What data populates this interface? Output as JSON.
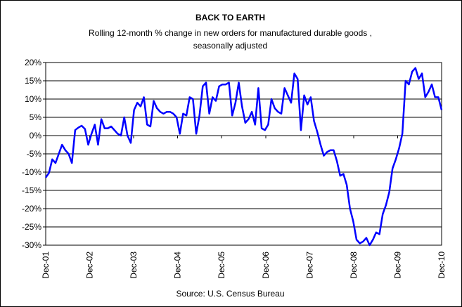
{
  "chart_data": {
    "type": "line",
    "title": "BACK TO EARTH",
    "subtitle_lines": [
      "Rolling 12-month % change in new orders for manufactured durable goods ,",
      "seasonally adjusted"
    ],
    "source": "Source: U.S. Census Bureau",
    "xlabel": "",
    "ylabel": "",
    "ylim": [
      -30,
      20
    ],
    "y_ticks": [
      20,
      15,
      10,
      5,
      0,
      -5,
      -10,
      -15,
      -20,
      -25,
      -30
    ],
    "y_tick_labels": [
      "20%",
      "15%",
      "10%",
      "5%",
      "0%",
      "-5%",
      "-10%",
      "-15%",
      "-20%",
      "-25%",
      "-30%"
    ],
    "x_tick_labels": [
      "Dec-01",
      "Dec-02",
      "Dec-03",
      "Dec-04",
      "Dec-05",
      "Dec-06",
      "Dec-07",
      "Dec-08",
      "Dec-09",
      "Dec-10"
    ],
    "grid": true,
    "line_color": "#0000ff",
    "series": [
      {
        "values": [
          -11.5,
          -10.2,
          -6.5,
          -7.5,
          -5.0,
          -2.5,
          -4.0,
          -5.0,
          -7.5,
          1.5,
          2.2,
          2.7,
          1.8,
          -2.5,
          0.5,
          3.0,
          -2.5,
          4.5,
          2.0,
          2.0,
          2.5,
          1.5,
          0.5,
          0.0,
          5.0,
          0.0,
          -2.0,
          7.0,
          9.0,
          8.0,
          10.5,
          3.0,
          2.5,
          9.5,
          7.5,
          6.5,
          6.0,
          6.5,
          6.5,
          6.0,
          5.0,
          0.5,
          6.0,
          5.5,
          10.5,
          10.0,
          0.5,
          5.5,
          13.5,
          14.5,
          6.0,
          10.5,
          9.5,
          13.5,
          14.0,
          14.0,
          14.5,
          5.5,
          9.0,
          14.5,
          8.0,
          3.5,
          4.5,
          6.5,
          3.0,
          13.0,
          2.0,
          1.5,
          3.0,
          10.0,
          7.5,
          6.5,
          6.0,
          13.0,
          11.0,
          9.0,
          17.0,
          15.5,
          1.5,
          11.0,
          8.5,
          10.5,
          4.0,
          1.0,
          -2.5,
          -5.5,
          -4.5,
          -4.0,
          -4.0,
          -7.0,
          -11.0,
          -10.5,
          -13.5,
          -20.0,
          -23.5,
          -28.5,
          -29.5,
          -29.0,
          -28.0,
          -30.0,
          -28.5,
          -26.5,
          -27.0,
          -21.5,
          -19.0,
          -15.5,
          -9.0,
          -6.5,
          -3.5,
          0.5,
          15.0,
          14.0,
          17.5,
          18.5,
          15.5,
          17.0,
          10.5,
          12.0,
          14.0,
          10.5,
          10.5,
          7.0
        ]
      }
    ]
  }
}
